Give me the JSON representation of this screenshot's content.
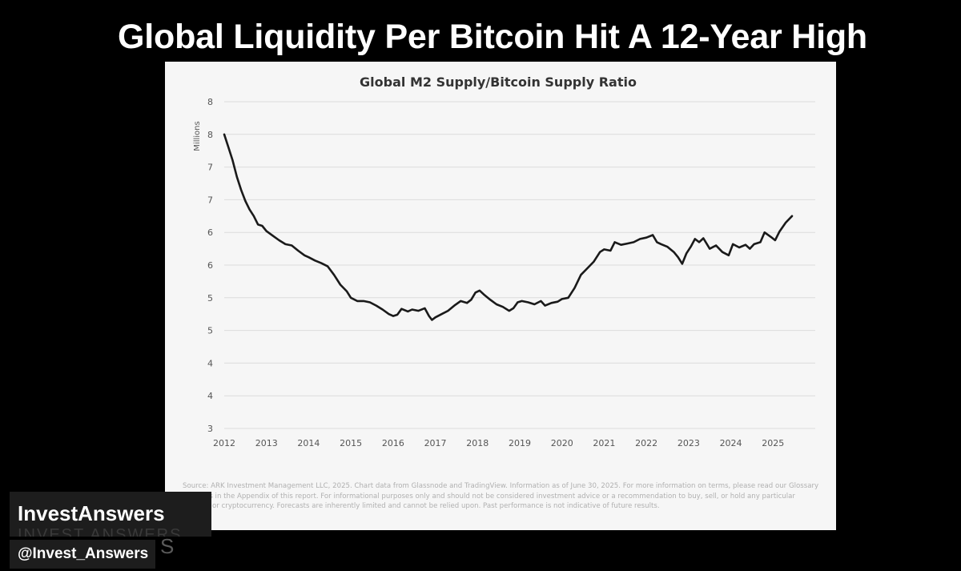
{
  "headline": "Global Liquidity Per Bitcoin Hit A 12-Year High",
  "chart_data": {
    "type": "line",
    "title": "Global M2 Supply/Bitcoin Supply Ratio",
    "ylabel": "Millions",
    "xlabel": "",
    "x_ticks": [
      "2012",
      "2013",
      "2014",
      "2015",
      "2016",
      "2017",
      "2018",
      "2019",
      "2020",
      "2021",
      "2022",
      "2023",
      "2024",
      "2025"
    ],
    "y_tick_labels": [
      "3",
      "4",
      "4",
      "5",
      "5",
      "6",
      "6",
      "7",
      "7",
      "8",
      "8"
    ],
    "ylim": [
      3,
      8
    ],
    "xlim": [
      2012,
      2026
    ],
    "grid": true,
    "legend": "none",
    "line_color": "#1a1a1a",
    "series": [
      {
        "x": [
          2012.0,
          2012.1,
          2012.2,
          2012.3,
          2012.4,
          2012.5,
          2012.6,
          2012.7,
          2012.8,
          2012.9,
          2013.0,
          2013.15,
          2013.3,
          2013.45,
          2013.6,
          2013.75,
          2013.9,
          2014.0,
          2014.15,
          2014.3,
          2014.45,
          2014.6,
          2014.75,
          2014.9,
          2015.0,
          2015.15,
          2015.3,
          2015.45,
          2015.6,
          2015.75,
          2015.9,
          2016.0,
          2016.1,
          2016.2,
          2016.35,
          2016.45,
          2016.6,
          2016.75,
          2016.85,
          2016.92,
          2017.0,
          2017.15,
          2017.3,
          2017.45,
          2017.6,
          2017.75,
          2017.85,
          2017.95,
          2018.05,
          2018.15,
          2018.3,
          2018.45,
          2018.6,
          2018.75,
          2018.85,
          2018.95,
          2019.05,
          2019.2,
          2019.35,
          2019.5,
          2019.6,
          2019.75,
          2019.9,
          2020.0,
          2020.15,
          2020.3,
          2020.45,
          2020.6,
          2020.75,
          2020.9,
          2021.0,
          2021.15,
          2021.25,
          2021.4,
          2021.55,
          2021.7,
          2021.85,
          2022.0,
          2022.15,
          2022.25,
          2022.35,
          2022.5,
          2022.65,
          2022.75,
          2022.85,
          2022.95,
          2023.05,
          2023.15,
          2023.25,
          2023.35,
          2023.5,
          2023.65,
          2023.8,
          2023.95,
          2024.05,
          2024.2,
          2024.35,
          2024.45,
          2024.55,
          2024.7,
          2024.8,
          2024.95,
          2025.05,
          2025.15,
          2025.3,
          2025.45
        ],
        "y": [
          7.5,
          7.3,
          7.1,
          6.85,
          6.65,
          6.48,
          6.35,
          6.25,
          6.12,
          6.1,
          6.02,
          5.95,
          5.88,
          5.82,
          5.8,
          5.72,
          5.65,
          5.62,
          5.57,
          5.53,
          5.48,
          5.35,
          5.2,
          5.1,
          5.0,
          4.95,
          4.95,
          4.93,
          4.88,
          4.82,
          4.75,
          4.72,
          4.74,
          4.83,
          4.79,
          4.82,
          4.8,
          4.84,
          4.72,
          4.66,
          4.7,
          4.75,
          4.8,
          4.88,
          4.95,
          4.92,
          4.97,
          5.08,
          5.11,
          5.05,
          4.97,
          4.9,
          4.86,
          4.8,
          4.84,
          4.93,
          4.95,
          4.93,
          4.9,
          4.95,
          4.88,
          4.92,
          4.94,
          4.98,
          5.0,
          5.15,
          5.35,
          5.45,
          5.55,
          5.7,
          5.74,
          5.72,
          5.85,
          5.81,
          5.83,
          5.85,
          5.9,
          5.92,
          5.96,
          5.85,
          5.82,
          5.78,
          5.7,
          5.62,
          5.52,
          5.68,
          5.78,
          5.9,
          5.85,
          5.91,
          5.75,
          5.8,
          5.7,
          5.65,
          5.82,
          5.77,
          5.81,
          5.75,
          5.82,
          5.85,
          6.0,
          5.93,
          5.88,
          6.01,
          6.15,
          6.25
        ]
      }
    ],
    "source_note": "Source: ARK Investment Management LLC, 2025. Chart data from Glassnode and TradingView. Information as of June 30, 2025. For more information on terms, please read our Glossary Of Terms in the Appendix of this report. For informational purposes only and should not be considered investment advice or a recommendation to buy, sell, or hold any particular security or cryptocurrency. Forecasts are inherently limited and cannot be relied upon. Past performance is not indicative of future results."
  },
  "brand": {
    "name": "InvestAnswers",
    "ghost": "INVEST ANSWERS",
    "handle": "@Invest_Answers",
    "handle_tail": "S"
  }
}
